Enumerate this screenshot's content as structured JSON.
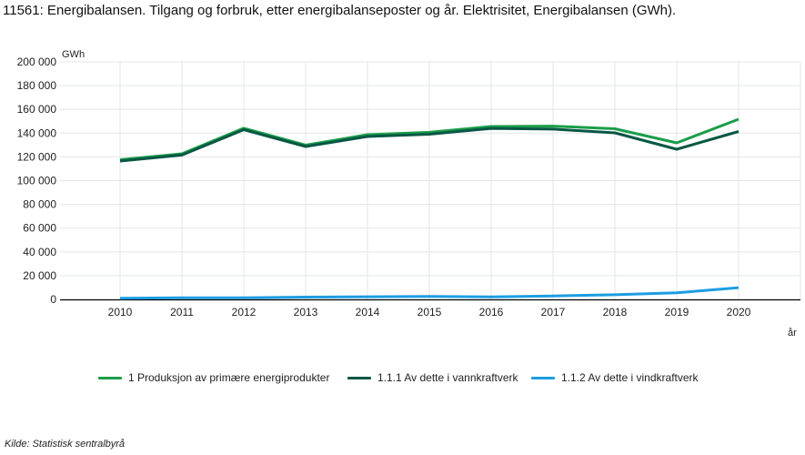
{
  "title": "11561: Energibalansen. Tilgang og forbruk, etter energibalanseposter og år. Elektrisitet, Energibalansen (GWh).",
  "source": "Kilde:  Statistisk sentralbyrå",
  "chart_data": {
    "type": "line",
    "title": "11561: Energibalansen. Tilgang og forbruk, etter energibalanseposter og år. Elektrisitet, Energibalansen (GWh).",
    "xlabel": "år",
    "ylabel": "GWh",
    "ylim": [
      0,
      200000
    ],
    "yticks": [
      0,
      20000,
      40000,
      60000,
      80000,
      100000,
      120000,
      140000,
      160000,
      180000,
      200000
    ],
    "ytick_labels": [
      "0",
      "20 000",
      "40 000",
      "60 000",
      "80 000",
      "100 000",
      "120 000",
      "140 000",
      "160 000",
      "180 000",
      "200 000"
    ],
    "categories": [
      "2010",
      "2011",
      "2012",
      "2013",
      "2014",
      "2015",
      "2016",
      "2017",
      "2018",
      "2019",
      "2020"
    ],
    "grid": true,
    "legend_position": "bottom",
    "series": [
      {
        "name": "1 Produksjon av primære energiprodukter",
        "color": "#1a9d49",
        "values": [
          117600,
          122600,
          144100,
          129900,
          138700,
          140700,
          145600,
          145900,
          143700,
          131800,
          151700
        ]
      },
      {
        "name": "1.1.1 Av dette i vannkraftverk",
        "color": "#075745",
        "values": [
          116500,
          121500,
          142900,
          128700,
          137200,
          139100,
          144000,
          143400,
          140200,
          126400,
          141400
        ]
      },
      {
        "name": "1.1.2 Av dette i vindkraftverk",
        "color": "#1d9de2",
        "values": [
          900,
          1300,
          1300,
          1900,
          2200,
          2500,
          2100,
          2900,
          3900,
          5500,
          9900
        ]
      }
    ]
  }
}
